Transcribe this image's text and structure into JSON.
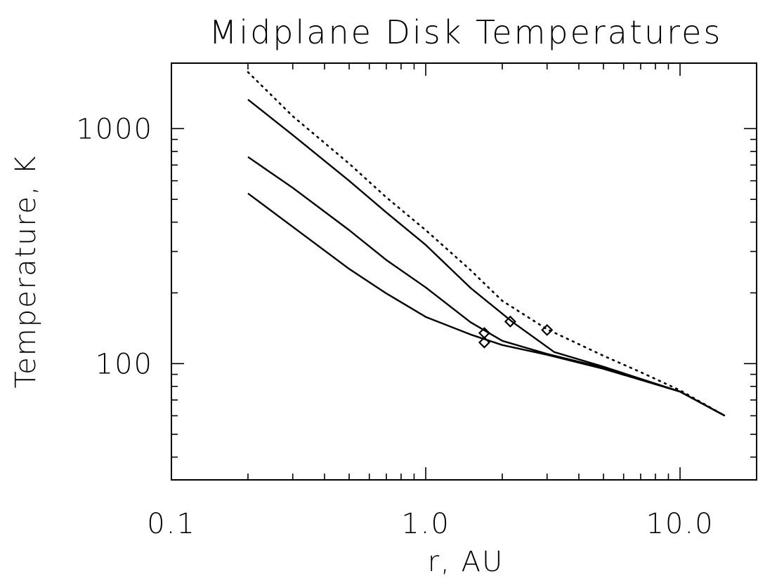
{
  "chart_data": {
    "type": "line",
    "title": "Midplane Disk Temperatures",
    "xlabel": "r, AU",
    "ylabel": "Temperature, K",
    "xscale": "log",
    "yscale": "log",
    "xlim": [
      0.1,
      20
    ],
    "ylim": [
      32,
      1900
    ],
    "grid": false,
    "legend": "none",
    "x_ticks": [
      {
        "value": 0.1,
        "label": "0.1"
      },
      {
        "value": 1.0,
        "label": "1.0"
      },
      {
        "value": 10.0,
        "label": "10.0"
      }
    ],
    "y_ticks": [
      {
        "value": 100,
        "label": "100"
      },
      {
        "value": 1000,
        "label": "1000"
      }
    ],
    "series": [
      {
        "style": "dotted",
        "points": [
          [
            0.2,
            1740
          ],
          [
            0.3,
            1130
          ],
          [
            0.5,
            710
          ],
          [
            0.7,
            510
          ],
          [
            1.0,
            370
          ],
          [
            1.5,
            250
          ],
          [
            2.0,
            185
          ],
          [
            3.0,
            140
          ],
          [
            5.0,
            108
          ],
          [
            7.0,
            92
          ],
          [
            10.0,
            77
          ],
          [
            15.0,
            60
          ]
        ]
      },
      {
        "style": "solid",
        "points": [
          [
            0.2,
            1330
          ],
          [
            0.3,
            940
          ],
          [
            0.5,
            600
          ],
          [
            0.7,
            440
          ],
          [
            1.0,
            320
          ],
          [
            1.5,
            210
          ],
          [
            2.2,
            150
          ],
          [
            3.2,
            112
          ],
          [
            5.0,
            97
          ],
          [
            10.0,
            76
          ],
          [
            15.0,
            60
          ]
        ]
      },
      {
        "style": "solid",
        "points": [
          [
            0.2,
            758
          ],
          [
            0.3,
            560
          ],
          [
            0.5,
            370
          ],
          [
            0.7,
            276
          ],
          [
            1.0,
            211
          ],
          [
            1.5,
            150
          ],
          [
            2.0,
            125
          ],
          [
            3.0,
            110
          ],
          [
            5.0,
            96
          ],
          [
            10.0,
            76
          ],
          [
            15.0,
            60
          ]
        ]
      },
      {
        "style": "solid",
        "points": [
          [
            0.2,
            530
          ],
          [
            0.3,
            382
          ],
          [
            0.5,
            253
          ],
          [
            0.7,
            199
          ],
          [
            1.0,
            158
          ],
          [
            1.5,
            133
          ],
          [
            2.0,
            120
          ],
          [
            3.0,
            109
          ],
          [
            5.0,
            95
          ],
          [
            10.0,
            76
          ],
          [
            15.0,
            60
          ]
        ]
      }
    ],
    "markers": {
      "shape": "diamond",
      "points": [
        [
          3.0,
          139
        ],
        [
          2.15,
          151
        ],
        [
          1.7,
          135
        ],
        [
          1.7,
          123
        ]
      ]
    }
  }
}
